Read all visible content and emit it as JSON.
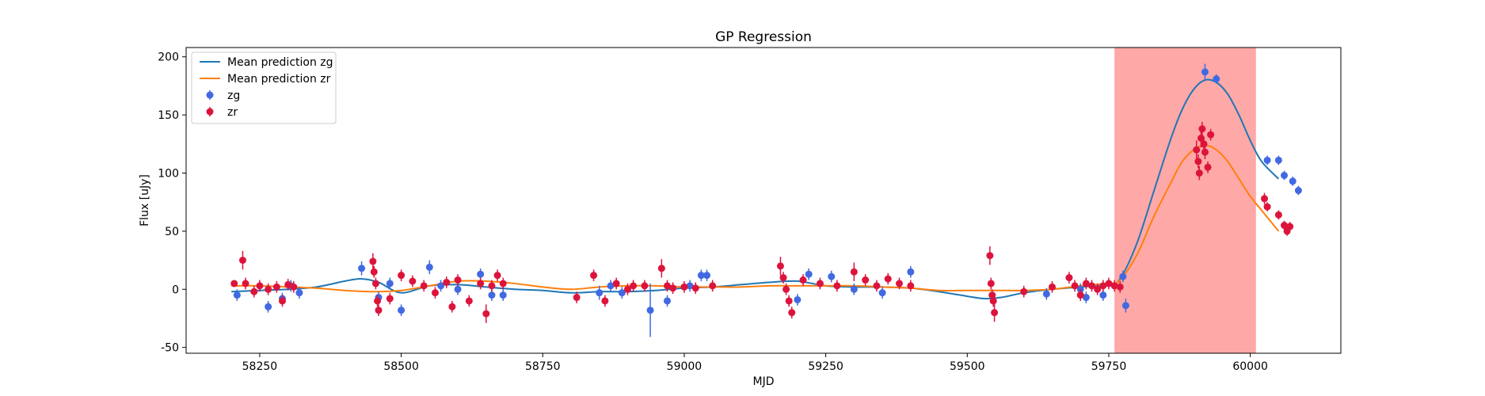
{
  "chart_data": {
    "type": "scatter",
    "title": "GP Regression",
    "xlabel": "MJD",
    "ylabel": "Flux [uJy]",
    "xlim": [
      58120,
      60160
    ],
    "ylim": [
      -55,
      208
    ],
    "xticks": [
      58250,
      58500,
      58750,
      59000,
      59250,
      59500,
      59750,
      60000
    ],
    "yticks": [
      -50,
      0,
      50,
      100,
      150,
      200
    ],
    "grid": false,
    "legend_position": "top-left",
    "shaded_region": {
      "x_start": 59760,
      "x_end": 60010,
      "color": "#ffa8a8"
    },
    "series": [
      {
        "name": "Mean prediction zg",
        "kind": "line",
        "color": "#1f77b4",
        "x": [
          58200,
          58250,
          58300,
          58350,
          58400,
          58430,
          58460,
          58500,
          58550,
          58600,
          58650,
          58700,
          58750,
          58800,
          58850,
          58900,
          58950,
          59000,
          59050,
          59100,
          59150,
          59200,
          59250,
          59300,
          59350,
          59400,
          59450,
          59500,
          59530,
          59560,
          59600,
          59650,
          59700,
          59750,
          59770,
          59800,
          59830,
          59860,
          59880,
          59900,
          59920,
          59940,
          59960,
          59980,
          60000,
          60020,
          60050
        ],
        "y": [
          -2,
          -1,
          0,
          2,
          7,
          9,
          6,
          -3,
          3,
          4,
          2,
          0,
          -1,
          -3,
          -2,
          -2,
          -1,
          1,
          2,
          4,
          6,
          7,
          3,
          2,
          2,
          1,
          -2,
          -6,
          -8,
          -7,
          -3,
          0,
          2,
          4,
          9,
          40,
          85,
          130,
          155,
          172,
          180,
          178,
          168,
          150,
          128,
          110,
          95
        ]
      },
      {
        "name": "Mean prediction zr",
        "kind": "line",
        "color": "#ff7f0e",
        "x": [
          58200,
          58250,
          58300,
          58350,
          58400,
          58450,
          58500,
          58550,
          58600,
          58650,
          58700,
          58750,
          58800,
          58850,
          58900,
          58950,
          59000,
          59050,
          59100,
          59150,
          59200,
          59250,
          59300,
          59350,
          59400,
          59450,
          59500,
          59550,
          59600,
          59650,
          59700,
          59750,
          59770,
          59800,
          59830,
          59860,
          59880,
          59900,
          59920,
          59940,
          59960,
          59980,
          60000,
          60020,
          60050
        ],
        "y": [
          3,
          3,
          2,
          1,
          -1,
          -2,
          -1,
          3,
          7,
          7,
          5,
          2,
          0,
          2,
          3,
          3,
          2,
          2,
          2,
          3,
          3,
          3,
          3,
          2,
          1,
          -1,
          -1,
          -1,
          -1,
          0,
          3,
          5,
          8,
          30,
          63,
          92,
          110,
          120,
          124,
          120,
          110,
          95,
          80,
          68,
          50
        ]
      },
      {
        "name": "zg",
        "kind": "errorbar",
        "color": "#4169e1",
        "x": [
          58210,
          58265,
          58290,
          58305,
          58320,
          58430,
          58460,
          58480,
          58500,
          58550,
          58570,
          58600,
          58640,
          58660,
          58680,
          58850,
          58870,
          58890,
          58940,
          58970,
          59010,
          59030,
          59040,
          59200,
          59220,
          59260,
          59300,
          59350,
          59400,
          59640,
          59700,
          59710,
          59740,
          59775,
          59780,
          59920,
          59940,
          60030,
          60050,
          60060,
          60075,
          60085
        ],
        "y": [
          -5,
          -15,
          -8,
          3,
          -3,
          18,
          -7,
          5,
          -18,
          19,
          3,
          0,
          13,
          -5,
          -5,
          -3,
          3,
          -3,
          -18,
          -10,
          3,
          12,
          12,
          -9,
          13,
          11,
          0,
          -3,
          15,
          -4,
          0,
          -7,
          -5,
          11,
          -14,
          187,
          181,
          111,
          111,
          98,
          93,
          85
        ],
        "err": [
          5,
          5,
          5,
          5,
          5,
          6,
          5,
          5,
          5,
          6,
          5,
          5,
          5,
          5,
          5,
          6,
          5,
          5,
          23,
          5,
          5,
          5,
          5,
          5,
          5,
          5,
          5,
          5,
          5,
          5,
          5,
          5,
          5,
          5,
          6,
          7,
          4,
          4,
          4,
          4,
          4,
          4
        ]
      },
      {
        "name": "zr",
        "kind": "errorbar",
        "color": "#dc143c",
        "x": [
          58205,
          58220,
          58225,
          58240,
          58250,
          58265,
          58280,
          58290,
          58300,
          58310,
          58450,
          58452,
          58455,
          58458,
          58460,
          58480,
          58500,
          58520,
          58540,
          58560,
          58580,
          58590,
          58600,
          58620,
          58640,
          58650,
          58660,
          58670,
          58680,
          58810,
          58840,
          58860,
          58880,
          58900,
          58910,
          58930,
          58960,
          58970,
          58980,
          59000,
          59020,
          59050,
          59170,
          59175,
          59180,
          59185,
          59190,
          59210,
          59240,
          59270,
          59300,
          59320,
          59340,
          59360,
          59380,
          59400,
          59540,
          59542,
          59544,
          59546,
          59548,
          59600,
          59650,
          59680,
          59690,
          59700,
          59710,
          59720,
          59730,
          59740,
          59750,
          59760,
          59770,
          59905,
          59908,
          59910,
          59913,
          59915,
          59918,
          59920,
          59925,
          59930,
          60025,
          60030,
          60050,
          60060,
          60065,
          60070
        ],
        "y": [
          5,
          25,
          5,
          -2,
          3,
          0,
          2,
          -10,
          4,
          2,
          24,
          15,
          5,
          -10,
          -18,
          -8,
          12,
          7,
          3,
          -3,
          6,
          -15,
          8,
          -10,
          5,
          -21,
          3,
          12,
          5,
          -7,
          12,
          -10,
          5,
          0,
          3,
          3,
          18,
          3,
          1,
          2,
          1,
          3,
          20,
          10,
          0,
          -10,
          -20,
          8,
          5,
          3,
          15,
          8,
          3,
          9,
          5,
          3,
          29,
          5,
          -5,
          -10,
          -20,
          -2,
          2,
          10,
          3,
          -5,
          5,
          3,
          0,
          3,
          5,
          3,
          2,
          120,
          110,
          100,
          130,
          138,
          125,
          118,
          105,
          133,
          78,
          71,
          64,
          55,
          50,
          54
        ],
        "err": [
          3,
          8,
          5,
          5,
          5,
          5,
          5,
          5,
          5,
          5,
          7,
          5,
          5,
          5,
          5,
          5,
          5,
          5,
          5,
          5,
          5,
          5,
          5,
          5,
          5,
          8,
          5,
          5,
          5,
          5,
          5,
          5,
          5,
          5,
          5,
          5,
          8,
          5,
          5,
          5,
          5,
          5,
          8,
          5,
          5,
          5,
          5,
          5,
          5,
          5,
          8,
          5,
          5,
          5,
          5,
          5,
          8,
          5,
          5,
          5,
          8,
          5,
          5,
          5,
          5,
          5,
          5,
          5,
          5,
          5,
          5,
          5,
          5,
          8,
          6,
          6,
          8,
          6,
          6,
          6,
          5,
          5,
          5,
          4,
          4,
          4,
          4,
          4
        ]
      }
    ]
  }
}
